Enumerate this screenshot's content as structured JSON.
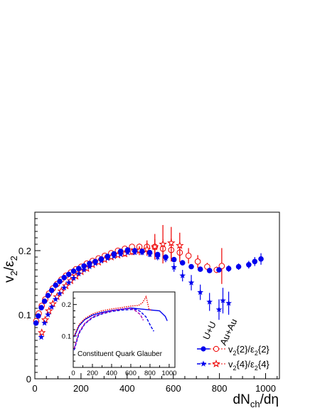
{
  "chart_data": {
    "type": "scatter",
    "ylabel": "v2/ε2",
    "xlabel": "dNch/dη",
    "xlim": [
      0,
      1060
    ],
    "ylim": [
      0,
      0.26
    ],
    "x_ticks": [
      "0",
      "200",
      "400",
      "600",
      "800",
      "1000"
    ],
    "y_ticks": [
      "0",
      "0.1",
      "0.2"
    ],
    "system_labels": [
      "U+U",
      "Au+Au"
    ],
    "legend": {
      "placement": "bottom-right",
      "entries": [
        "v2{2}/ε2{2}",
        "v2{4}/ε2{4}"
      ]
    },
    "series": [
      {
        "system": "U+U",
        "estimator": "v2{2}/ε2{2}",
        "color": "#0000ee",
        "marker": "filled-circle",
        "points": [
          [
            5,
            0.087
          ],
          [
            15,
            0.098
          ],
          [
            28,
            0.111
          ],
          [
            42,
            0.121
          ],
          [
            57,
            0.13
          ],
          [
            73,
            0.138
          ],
          [
            90,
            0.146
          ],
          [
            108,
            0.152
          ],
          [
            127,
            0.158
          ],
          [
            147,
            0.163
          ],
          [
            168,
            0.168
          ],
          [
            190,
            0.172
          ],
          [
            213,
            0.176
          ],
          [
            237,
            0.18
          ],
          [
            262,
            0.183
          ],
          [
            288,
            0.187
          ],
          [
            315,
            0.191
          ],
          [
            343,
            0.195
          ],
          [
            372,
            0.199
          ],
          [
            402,
            0.201
          ],
          [
            433,
            0.2
          ],
          [
            465,
            0.199
          ],
          [
            498,
            0.197
          ],
          [
            532,
            0.194
          ],
          [
            567,
            0.19
          ],
          [
            603,
            0.186
          ],
          [
            640,
            0.181
          ],
          [
            678,
            0.175
          ],
          [
            717,
            0.171
          ],
          [
            757,
            0.169
          ],
          [
            798,
            0.17
          ],
          [
            840,
            0.172
          ],
          [
            883,
            0.175
          ],
          [
            927,
            0.178
          ],
          [
            953,
            0.183
          ],
          [
            980,
            0.187
          ]
        ],
        "errors": [
          0.001,
          0.001,
          0.001,
          0.001,
          0.001,
          0.001,
          0.001,
          0.001,
          0.001,
          0.001,
          0.001,
          0.001,
          0.001,
          0.001,
          0.001,
          0.001,
          0.001,
          0.001,
          0.002,
          0.002,
          0.002,
          0.003,
          0.003,
          0.003,
          0.003,
          0.003,
          0.003,
          0.003,
          0.003,
          0.003,
          0.004,
          0.005,
          0.005,
          0.006,
          0.007,
          0.009
        ]
      },
      {
        "system": "Au+Au",
        "estimator": "v2{2}/ε2{2}",
        "color": "#ee0000",
        "marker": "open-circle",
        "points": [
          [
            6,
            0.09
          ],
          [
            17,
            0.102
          ],
          [
            30,
            0.114
          ],
          [
            45,
            0.124
          ],
          [
            61,
            0.133
          ],
          [
            78,
            0.141
          ],
          [
            96,
            0.148
          ],
          [
            115,
            0.155
          ],
          [
            135,
            0.161
          ],
          [
            156,
            0.166
          ],
          [
            178,
            0.171
          ],
          [
            201,
            0.175
          ],
          [
            225,
            0.18
          ],
          [
            250,
            0.184
          ],
          [
            276,
            0.188
          ],
          [
            303,
            0.192
          ],
          [
            331,
            0.196
          ],
          [
            360,
            0.2
          ],
          [
            390,
            0.203
          ],
          [
            421,
            0.206
          ],
          [
            453,
            0.206
          ],
          [
            486,
            0.206
          ],
          [
            520,
            0.206
          ],
          [
            555,
            0.203
          ],
          [
            591,
            0.201
          ],
          [
            628,
            0.197
          ],
          [
            666,
            0.192
          ],
          [
            706,
            0.183
          ],
          [
            747,
            0.175
          ],
          [
            788,
            0.17
          ],
          [
            810,
            0.176
          ]
        ],
        "errors": [
          0.001,
          0.001,
          0.001,
          0.001,
          0.001,
          0.001,
          0.001,
          0.001,
          0.001,
          0.001,
          0.001,
          0.001,
          0.001,
          0.001,
          0.001,
          0.002,
          0.002,
          0.002,
          0.003,
          0.004,
          0.005,
          0.01,
          0.012,
          0.015,
          0.018,
          0.015,
          0.012,
          0.01,
          0.006,
          0.005,
          0.028
        ]
      },
      {
        "system": "U+U",
        "estimator": "v2{4}/ε2{4}",
        "color": "#0000ee",
        "marker": "filled-star",
        "points": [
          [
            28,
            0.065
          ],
          [
            42,
            0.087
          ],
          [
            57,
            0.1
          ],
          [
            73,
            0.112
          ],
          [
            90,
            0.124
          ],
          [
            108,
            0.133
          ],
          [
            127,
            0.142
          ],
          [
            147,
            0.15
          ],
          [
            168,
            0.157
          ],
          [
            190,
            0.164
          ],
          [
            213,
            0.17
          ],
          [
            237,
            0.175
          ],
          [
            262,
            0.18
          ],
          [
            288,
            0.184
          ],
          [
            315,
            0.188
          ],
          [
            343,
            0.191
          ],
          [
            372,
            0.194
          ],
          [
            402,
            0.197
          ],
          [
            433,
            0.197
          ],
          [
            465,
            0.197
          ],
          [
            498,
            0.194
          ],
          [
            532,
            0.19
          ],
          [
            567,
            0.188
          ],
          [
            603,
            0.174
          ],
          [
            640,
            0.161
          ],
          [
            678,
            0.15
          ],
          [
            717,
            0.135
          ],
          [
            757,
            0.12
          ],
          [
            798,
            0.108
          ],
          [
            815,
            0.122
          ],
          [
            840,
            0.118
          ]
        ],
        "errors": [
          0.002,
          0.002,
          0.002,
          0.002,
          0.002,
          0.002,
          0.002,
          0.002,
          0.002,
          0.002,
          0.002,
          0.002,
          0.002,
          0.002,
          0.002,
          0.002,
          0.002,
          0.003,
          0.003,
          0.004,
          0.004,
          0.005,
          0.006,
          0.007,
          0.009,
          0.012,
          0.012,
          0.014,
          0.016,
          0.02,
          0.018
        ]
      },
      {
        "system": "Au+Au",
        "estimator": "v2{4}/ε2{4}",
        "color": "#ee0000",
        "marker": "open-star",
        "points": [
          [
            30,
            0.072
          ],
          [
            45,
            0.092
          ],
          [
            61,
            0.106
          ],
          [
            78,
            0.117
          ],
          [
            96,
            0.128
          ],
          [
            115,
            0.137
          ],
          [
            135,
            0.145
          ],
          [
            156,
            0.153
          ],
          [
            178,
            0.16
          ],
          [
            201,
            0.167
          ],
          [
            225,
            0.172
          ],
          [
            250,
            0.178
          ],
          [
            276,
            0.182
          ],
          [
            303,
            0.186
          ],
          [
            331,
            0.19
          ],
          [
            360,
            0.193
          ],
          [
            390,
            0.195
          ],
          [
            421,
            0.198
          ],
          [
            453,
            0.2
          ],
          [
            486,
            0.202
          ],
          [
            520,
            0.206
          ],
          [
            555,
            0.21
          ],
          [
            591,
            0.212
          ],
          [
            628,
            0.208
          ]
        ],
        "errors": [
          0.002,
          0.002,
          0.002,
          0.002,
          0.002,
          0.002,
          0.002,
          0.002,
          0.002,
          0.002,
          0.002,
          0.002,
          0.002,
          0.002,
          0.003,
          0.003,
          0.004,
          0.005,
          0.007,
          0.01,
          0.02,
          0.03,
          0.025,
          0.02
        ]
      }
    ],
    "inset": {
      "label": "Constituent Quark Glauber",
      "xlim": [
        0,
        1060
      ],
      "ylim": [
        0,
        0.24
      ],
      "x_ticks": [
        "0",
        "200",
        "400",
        "600",
        "800",
        "1000"
      ],
      "y_ticks": [
        "0.1",
        "0.2"
      ],
      "series": [
        {
          "system": "U+U",
          "estimator": "v2{2}/ε2{2}",
          "color": "#0000ee",
          "line": "solid",
          "points": [
            [
              10,
              0.097
            ],
            [
              60,
              0.132
            ],
            [
              120,
              0.152
            ],
            [
              200,
              0.166
            ],
            [
              300,
              0.175
            ],
            [
              400,
              0.181
            ],
            [
              500,
              0.185
            ],
            [
              600,
              0.189
            ],
            [
              700,
              0.186
            ],
            [
              800,
              0.183
            ],
            [
              900,
              0.18
            ],
            [
              960,
              0.162
            ],
            [
              980,
              0.148
            ]
          ]
        },
        {
          "system": "Au+Au",
          "estimator": "v2{2}/ε2{2}",
          "color": "#ee0000",
          "line": "dotted",
          "points": [
            [
              10,
              0.1
            ],
            [
              60,
              0.136
            ],
            [
              120,
              0.155
            ],
            [
              200,
              0.17
            ],
            [
              300,
              0.18
            ],
            [
              400,
              0.186
            ],
            [
              500,
              0.19
            ],
            [
              600,
              0.195
            ],
            [
              680,
              0.197
            ],
            [
              720,
              0.205
            ],
            [
              760,
              0.225
            ],
            [
              790,
              0.185
            ],
            [
              820,
              0.18
            ]
          ]
        },
        {
          "system": "U+U",
          "estimator": "v2{4}/ε2{4}",
          "color": "#0000ee",
          "line": "dashed",
          "points": [
            [
              10,
              0.055
            ],
            [
              60,
              0.108
            ],
            [
              120,
              0.138
            ],
            [
              200,
              0.158
            ],
            [
              300,
              0.17
            ],
            [
              400,
              0.178
            ],
            [
              500,
              0.182
            ],
            [
              600,
              0.184
            ],
            [
              650,
              0.185
            ],
            [
              700,
              0.178
            ],
            [
              760,
              0.16
            ],
            [
              810,
              0.13
            ],
            [
              840,
              0.115
            ]
          ]
        },
        {
          "system": "Au+Au",
          "estimator": "v2{4}/ε2{4}",
          "color": "#aa00aa",
          "line": "dashed",
          "points": [
            [
              10,
              0.06
            ],
            [
              60,
              0.112
            ],
            [
              120,
              0.14
            ],
            [
              200,
              0.16
            ],
            [
              300,
              0.172
            ],
            [
              400,
              0.18
            ],
            [
              500,
              0.185
            ],
            [
              600,
              0.188
            ],
            [
              650,
              0.18
            ],
            [
              700,
              0.168
            ],
            [
              730,
              0.15
            ]
          ]
        }
      ]
    }
  }
}
